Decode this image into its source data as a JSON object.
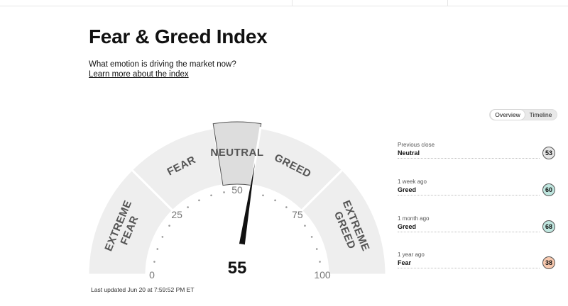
{
  "page": {
    "title": "Fear & Greed Index",
    "subtitle": "What emotion is driving the market now?",
    "learn_more": "Learn more about the index"
  },
  "view_toggle": {
    "options": [
      "Overview",
      "Timeline"
    ],
    "selected": "Overview"
  },
  "gauge": {
    "value": 55,
    "value_label": "55",
    "active_zone": "NEUTRAL",
    "zones": [
      {
        "name": "extreme-fear",
        "lines": [
          "EXTREME",
          "FEAR"
        ]
      },
      {
        "name": "fear",
        "lines": [
          "FEAR"
        ]
      },
      {
        "name": "neutral",
        "lines": [
          "NEUTRAL"
        ]
      },
      {
        "name": "greed",
        "lines": [
          "GREED"
        ]
      },
      {
        "name": "extreme-greed",
        "lines": [
          "EXTREME",
          "GREED"
        ]
      }
    ],
    "scale_labels": [
      "0",
      "25",
      "50",
      "75",
      "100"
    ],
    "scale_values": [
      0,
      25,
      50,
      75,
      100
    ]
  },
  "last_updated": "Last updated Jun 20 at 7:59:52 PM ET",
  "history": [
    {
      "label": "Previous close",
      "rating": "Neutral",
      "value": "53",
      "color": "#e6e6e6"
    },
    {
      "label": "1 week ago",
      "rating": "Greed",
      "value": "60",
      "color": "#bfe6df"
    },
    {
      "label": "1 month ago",
      "rating": "Greed",
      "value": "68",
      "color": "#bfe6df"
    },
    {
      "label": "1 year ago",
      "rating": "Fear",
      "value": "38",
      "color": "#f7c8ae"
    }
  ],
  "colors": {
    "band": "#eeeeee",
    "band_active": "#dddddd",
    "needle": "#111111",
    "ticks": "#999999"
  }
}
